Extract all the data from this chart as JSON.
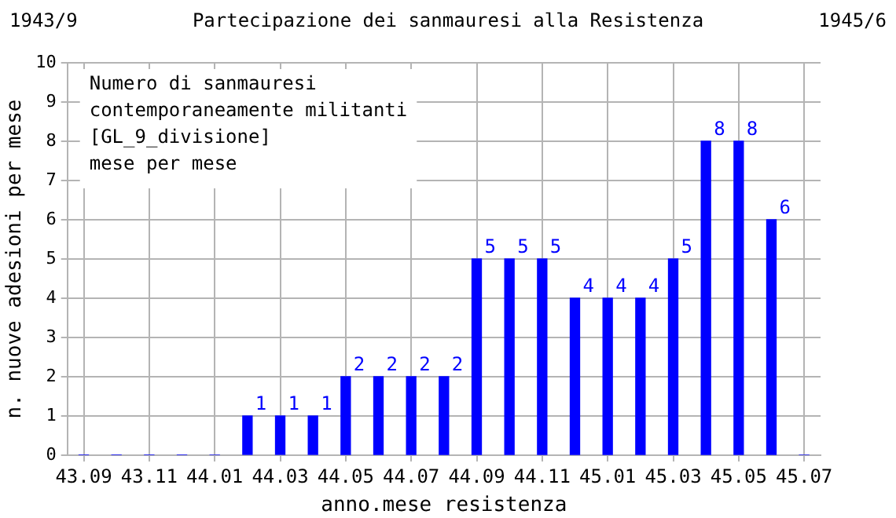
{
  "chart_data": {
    "type": "bar",
    "title": "Partecipazione dei sanmauresi alla Resistenza",
    "xlabel": "anno.mese resistenza",
    "ylabel": "n. nuove adesioni per mese",
    "annotations": [
      "1943/9",
      "1945/6",
      "Numero di sanmauresi\ncontemporaneamente militanti\n[GL_9_divisione]\nmese per mese"
    ],
    "categories": [
      "43.09",
      null,
      "43.11",
      null,
      "44.01",
      null,
      "44.03",
      null,
      "44.05",
      null,
      "44.07",
      null,
      "44.09",
      null,
      "44.11",
      null,
      "45.01",
      null,
      "45.03",
      null,
      "45.05",
      null,
      "45.07"
    ],
    "values": [
      0,
      0,
      0,
      0,
      0,
      1,
      1,
      1,
      2,
      2,
      2,
      2,
      5,
      5,
      5,
      4,
      4,
      4,
      5,
      8,
      8,
      6,
      0
    ],
    "value_labels": [
      null,
      null,
      null,
      null,
      null,
      "1",
      "1",
      "1",
      "2",
      "2",
      "2",
      "2",
      "5",
      "5",
      "5",
      "4",
      "4",
      "4",
      "5",
      "8",
      "8",
      "6",
      null
    ],
    "color": "#0000ff",
    "ylim": [
      0,
      10
    ],
    "yticks": [
      0,
      1,
      2,
      3,
      4,
      5,
      6,
      7,
      8,
      9,
      10
    ],
    "grid": true,
    "legend": false
  }
}
